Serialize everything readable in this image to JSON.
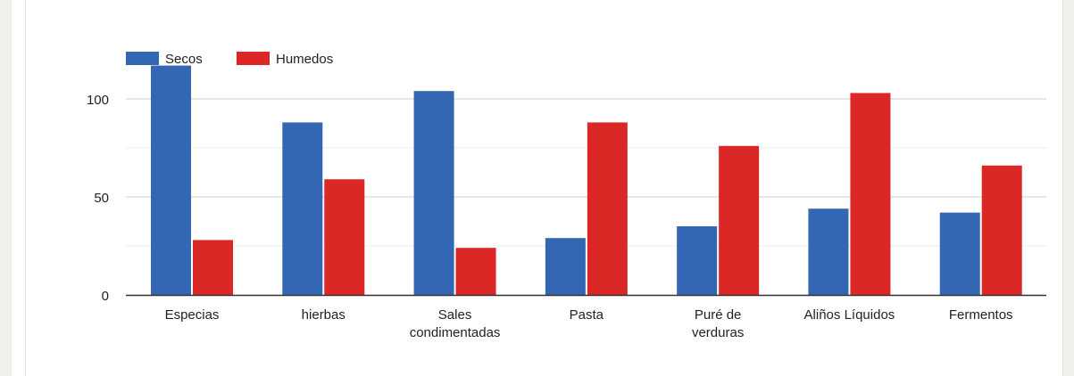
{
  "chart_data": {
    "type": "bar",
    "title": "",
    "xlabel": "",
    "ylabel": "",
    "categories": [
      [
        "Especias"
      ],
      [
        "hierbas"
      ],
      [
        "Sales",
        "condimentadas"
      ],
      [
        "Pasta"
      ],
      [
        "Puré de",
        "verduras"
      ],
      [
        "Aliños Líquidos"
      ],
      [
        "Fermentos"
      ]
    ],
    "series": [
      {
        "name": "Secos",
        "color": "#3366b3",
        "values": [
          117,
          88,
          104,
          29,
          35,
          44,
          42
        ]
      },
      {
        "name": "Humedos",
        "color": "#dc2727",
        "values": [
          28,
          59,
          24,
          88,
          76,
          103,
          66
        ]
      }
    ],
    "ylim": [
      0,
      125
    ],
    "yticks": [
      0,
      50,
      100
    ],
    "grid": true,
    "legend": "top-left"
  }
}
